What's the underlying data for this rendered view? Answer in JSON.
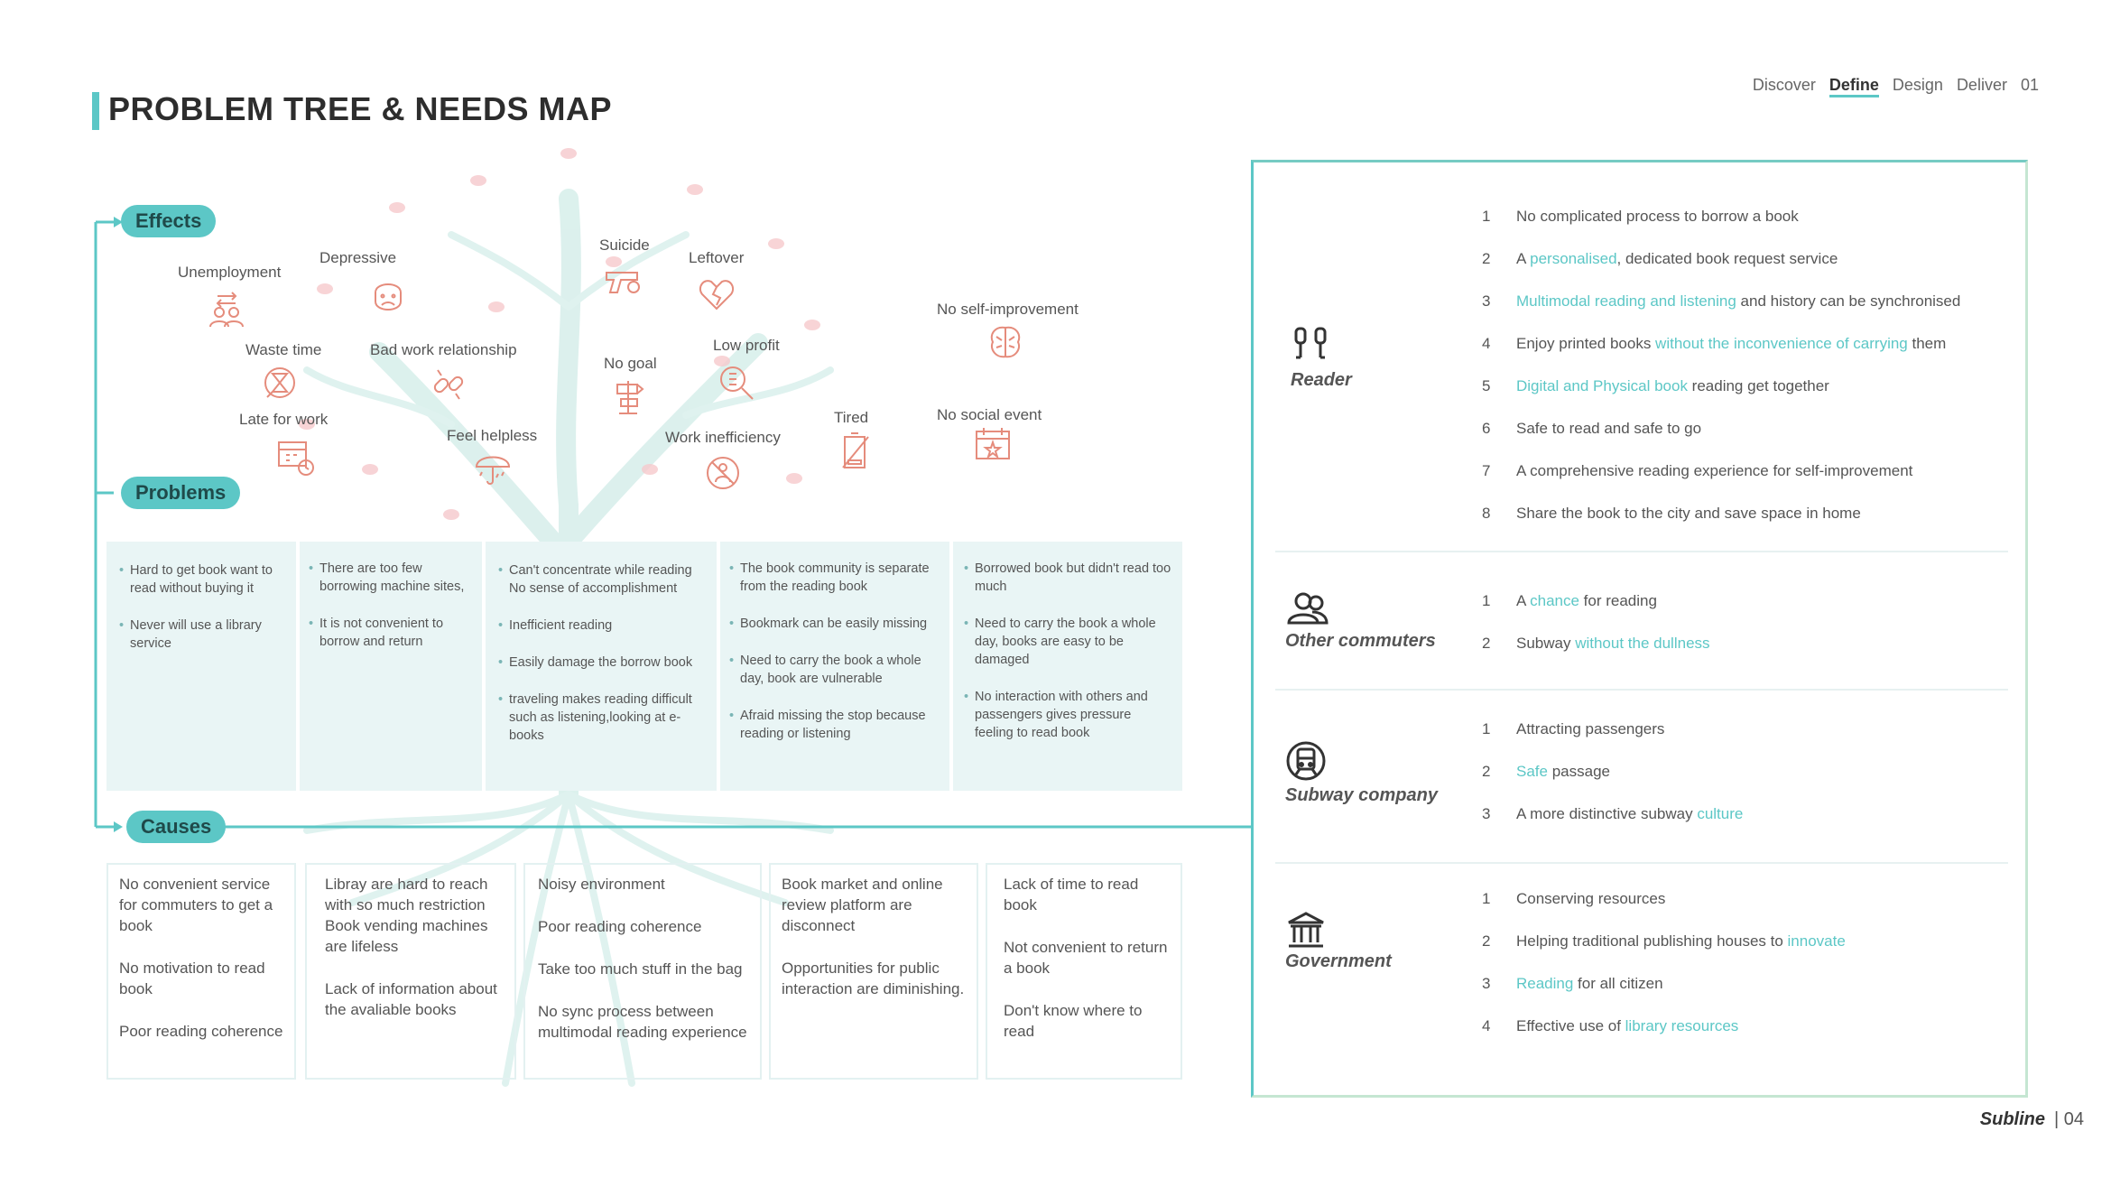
{
  "header": {
    "title": "PROBLEM TREE & NEEDS MAP",
    "nav": [
      "Discover",
      "Define",
      "Design",
      "Deliver",
      "01"
    ],
    "active_nav": "Define"
  },
  "labels": {
    "effects": "Effects",
    "problems": "Problems",
    "causes": "Causes"
  },
  "effects": [
    {
      "label": "Unemployment",
      "icon": "people-swap-icon"
    },
    {
      "label": "Depressive",
      "icon": "sad-face-icon"
    },
    {
      "label": "Suicide",
      "icon": "gun-icon"
    },
    {
      "label": "Leftover",
      "icon": "broken-heart-icon"
    },
    {
      "label": "No self-improvement",
      "icon": "brain-icon"
    },
    {
      "label": "Waste time",
      "icon": "hourglass-icon"
    },
    {
      "label": "Bad work relationship",
      "icon": "broken-link-icon"
    },
    {
      "label": "No goal",
      "icon": "signpost-icon"
    },
    {
      "label": "Low profit",
      "icon": "coin-search-icon"
    },
    {
      "label": "Late for work",
      "icon": "calendar-clock-icon"
    },
    {
      "label": "Feel helpless",
      "icon": "umbrella-rain-icon"
    },
    {
      "label": "Work inefficiency",
      "icon": "no-work-icon"
    },
    {
      "label": "Tired",
      "icon": "crossed-battery-icon"
    },
    {
      "label": "No social event",
      "icon": "calendar-star-icon"
    }
  ],
  "problems": [
    [
      "Hard to get book want to read without buying it",
      "Never will use a library service"
    ],
    [
      "There are too few borrowing machine sites,",
      "It is not convenient to borrow and return"
    ],
    [
      "Can't concentrate while reading No sense of accomplishment",
      "Inefficient reading",
      "Easily damage the borrow book",
      "traveling makes reading difficult such as listening,looking at e-books"
    ],
    [
      "The book community is separate from the reading book",
      "Bookmark can be easily missing",
      "Need to carry the book a whole day, book are vulnerable",
      "Afraid missing the stop because reading or listening"
    ],
    [
      "Borrowed book but didn't read too much",
      "Need to carry the book a whole day, books are easy to be damaged",
      "No interaction with others and passengers gives pressure feeling to read book"
    ]
  ],
  "causes": [
    [
      "No convenient service for commuters to get a book",
      "No motivation to read book",
      "Poor reading coherence"
    ],
    [
      "Libray are hard to reach with so much restriction Book vending machines are lifeless",
      "Lack of information about the avaliable books"
    ],
    [
      "Noisy environment",
      "Poor reading coherence",
      "Take too much stuff in the bag",
      "No sync process between multimodal reading experience"
    ],
    [
      "Book market and online review platform are disconnect",
      "Opportunities for public interaction are diminishing."
    ],
    [
      "Lack of time to read book",
      "Not convenient to return a book",
      "Don't know where to read"
    ]
  ],
  "stakeholders": [
    {
      "name": "Reader",
      "icon": "headphones-icon",
      "needs": [
        {
          "num": "1",
          "parts": [
            "No complicated process to borrow a book"
          ]
        },
        {
          "num": "2",
          "parts": [
            "A ",
            "personalised",
            ", dedicated book request service"
          ]
        },
        {
          "num": "3",
          "parts": [
            "",
            "Multimodal reading and listening",
            " and history can be synchronised"
          ]
        },
        {
          "num": "4",
          "parts": [
            "Enjoy printed books ",
            "without the inconvenience of carrying",
            " them"
          ]
        },
        {
          "num": "5",
          "parts": [
            "",
            "Digital and Physical book",
            " reading get together"
          ]
        },
        {
          "num": "6",
          "parts": [
            "Safe to read and safe to go"
          ]
        },
        {
          "num": "7",
          "parts": [
            "A comprehensive reading experience for self-improvement"
          ]
        },
        {
          "num": "8",
          "parts": [
            "Share the book to the city and save space in home"
          ]
        }
      ]
    },
    {
      "name": "Other commuters",
      "icon": "commuters-icon",
      "needs": [
        {
          "num": "1",
          "parts": [
            "A ",
            "chance",
            " for reading"
          ]
        },
        {
          "num": "2",
          "parts": [
            "Subway ",
            "without the dullness",
            ""
          ]
        }
      ]
    },
    {
      "name": "Subway company",
      "icon": "train-icon",
      "needs": [
        {
          "num": "1",
          "parts": [
            "Attracting passengers"
          ]
        },
        {
          "num": "2",
          "parts": [
            "",
            "Safe",
            " passage"
          ]
        },
        {
          "num": "3",
          "parts": [
            "A more distinctive subway ",
            "culture",
            ""
          ]
        }
      ]
    },
    {
      "name": "Government",
      "icon": "government-building-icon",
      "needs": [
        {
          "num": "1",
          "parts": [
            "Conserving resources"
          ]
        },
        {
          "num": "2",
          "parts": [
            "Helping traditional publishing houses to ",
            "innovate",
            ""
          ]
        },
        {
          "num": "3",
          "parts": [
            "",
            "Reading",
            " for all citizen"
          ]
        },
        {
          "num": "4",
          "parts": [
            "Effective use of ",
            "library resources",
            ""
          ]
        }
      ]
    }
  ],
  "footer": {
    "brand": "Subline",
    "page": "| 04"
  },
  "colors": {
    "accent": "#5cc7c6",
    "icon": "#e58c7c",
    "problem_bg": "#e9f5f5",
    "blossom": "#f4b9bd"
  }
}
